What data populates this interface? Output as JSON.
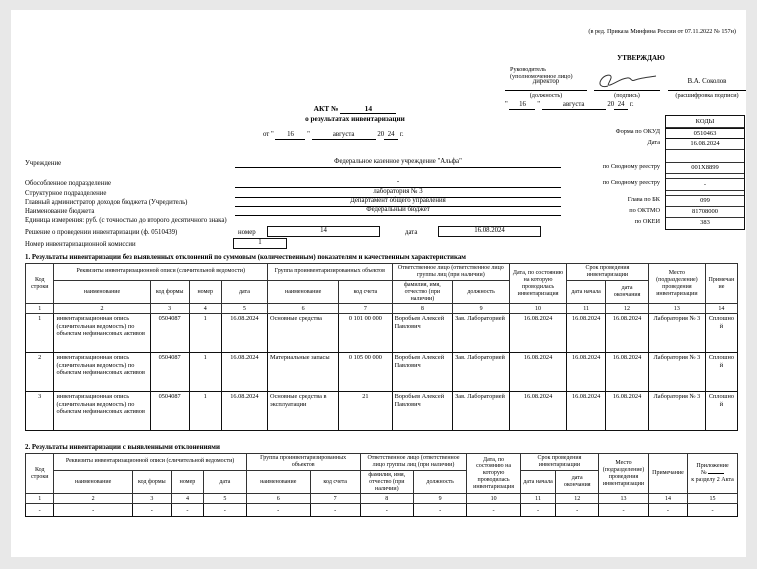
{
  "qm": "\"",
  "revision_note": "(в ред. Приказа Минфина России от 07.11.2022 № 157н)",
  "approval": {
    "word": "УТВЕРЖДАЮ",
    "head_line1": "Руководитель",
    "head_line2": "(уполномоченное лицо)",
    "position": "директор",
    "position_caption": "(должность)",
    "signature_caption": "(подпись)",
    "name": "В.А. Соколов",
    "name_caption": "(расшифровка подписи)",
    "date_day": "16",
    "date_month": "августа",
    "year_prefix": "20",
    "year": "24",
    "year_suffix": "г."
  },
  "title": {
    "act_label": "АКТ №",
    "act_number": "14",
    "subtitle": "о результатах инвентаризации",
    "from_word": "от",
    "date_day": "16",
    "date_month": "августа",
    "year_prefix": "20",
    "year": "24",
    "year_suffix": "г."
  },
  "codes": {
    "header": "КОДЫ",
    "okud_label": "Форма по ОКУД",
    "okud": "0510463",
    "date_label": "Дата",
    "date": "16.08.2024",
    "registry1_label": "по Сводному реестру",
    "registry1": "001Х8899",
    "registry2_label": "по Сводному реестру",
    "registry2": "-",
    "bk_label": "Глава по БК",
    "bk": "099",
    "oktmo_label": "по ОКТМО",
    "oktmo": "81708000",
    "okei_label": "по ОКЕИ",
    "okei": "383"
  },
  "fields": {
    "institution_label": "Учреждение",
    "institution": "Федеральное казенное учреждение \"Альфа\"",
    "separate_unit_label": "Обособленное подразделение",
    "separate_unit": "-",
    "structural_unit_label": "Структурное подразделение",
    "structural_unit": "лаборатория № 3",
    "admin_label": "Главный администратор доходов бюджета (Учредитель)",
    "admin": "Департамент общего управления",
    "budget_label": "Наименование бюджета",
    "budget": "Федеральный бюджет",
    "unit_label": "Единица измерения: руб. (с точностью до второго десятичного знака)",
    "decision_label": "Решение о проведении инвентаризации (ф. 0510439)",
    "decision_number_label": "номер",
    "decision_number": "14",
    "decision_date_label": "дата",
    "decision_date": "16.08.2024",
    "commission_label": "Номер инвентаризационной комиссии",
    "commission_number": "1"
  },
  "section1": {
    "title": "1. Результаты инвентаризации без выявленных отклонений по суммовым (количественным) показателям и качественным характеристикам",
    "header": {
      "code_line": "Код строки",
      "requisites": "Реквизиты инвентаризационной описи (сличительной ведомости)",
      "group": "Группа проинвентаризированных объектов",
      "responsible": "Ответственное лицо (ответственное лицо группы лиц (при наличии)",
      "date_as_of": "Дата, по состоянию на которую проводилась инвентаризация",
      "period": "Срок проведения инвентаризации",
      "place": "Место (подразделение) проведения инвентаризации",
      "note": "Примечание",
      "sub_name": "наименование",
      "sub_form_code": "код формы",
      "sub_number": "номер",
      "sub_date": "дата",
      "sub_name2": "наименование",
      "sub_account": "код счета",
      "sub_fio": "фамилия, имя, отчество (при наличии)",
      "sub_position": "должность",
      "sub_start": "дата начала",
      "sub_end": "дата окончания",
      "numbers": [
        "1",
        "2",
        "3",
        "4",
        "5",
        "6",
        "7",
        "8",
        "9",
        "10",
        "11",
        "12",
        "13",
        "14"
      ]
    },
    "rows": [
      {
        "cells": [
          "1",
          "инвентаризационная опись (сличительная ведомость) по объектам нефинансовых активов",
          "0504087",
          "1",
          "16.08.2024",
          "Основные средства",
          "0 101 00 000",
          "Воробьев Алексей Павлович",
          "Зав. Лабораторией",
          "16.08.2024",
          "16.08.2024",
          "16.08.2024",
          "Лаборатория № 3",
          "Сплошной"
        ]
      },
      {
        "cells": [
          "2",
          "инвентаризационная опись (сличительная ведомость) по объектам нефинансовых активов",
          "0504087",
          "1",
          "16.08.2024",
          "Материальные запасы",
          "0 105 00 000",
          "Воробьев Алексей Павлович",
          "Зав. Лабораторией",
          "16.08.2024",
          "16.08.2024",
          "16.08.2024",
          "Лаборатория № 3",
          "Сплошной"
        ]
      },
      {
        "cells": [
          "3",
          "инвентаризационная опись (сличительная ведомость) по объектам нефинансовых активов",
          "0504087",
          "1",
          "16.08.2024",
          "Основные средства в эксплуатации",
          "21",
          "Воробьев Алексей Павлович",
          "Зав. Лабораторией",
          "16.08.2024",
          "16.08.2024",
          "16.08.2024",
          "Лаборатория № 3",
          "Сплошной"
        ]
      }
    ]
  },
  "section2": {
    "title": "2. Результаты инвентаризации с выявленными отклонениями",
    "header": {
      "code_line": "Код строки",
      "requisites": "Реквизиты инвентаризационной описи (сличительной ведомости)",
      "group": "Группа проинвентаризированных объектов",
      "responsible": "Ответственное лицо (ответственное лицо группы лиц (при наличии)",
      "date_as_of": "Дата, по состоянию на которую проводилась инвентаризация",
      "period": "Срок проведения инвентаризации",
      "place": "Место (подразделение) проведения инвентаризации",
      "note": "Примечание",
      "appendix_line1": "Приложение",
      "appendix_no": "№",
      "appendix_line3": "к разделу 2 Акта",
      "sub_name": "наименование",
      "sub_form_code": "код формы",
      "sub_number": "номер",
      "sub_date": "дата",
      "sub_name2": "наименование",
      "sub_account": "код счета",
      "sub_fio": "фамилия, имя, отчество (при наличии)",
      "sub_position": "должность",
      "sub_start": "дата начала",
      "sub_end": "дата окончания",
      "numbers": [
        "1",
        "2",
        "3",
        "4",
        "5",
        "6",
        "7",
        "8",
        "9",
        "10",
        "11",
        "12",
        "13",
        "14",
        "15"
      ]
    },
    "rows": [
      {
        "cells": [
          "-",
          "-",
          "-",
          "-",
          "-",
          "-",
          "-",
          "-",
          "-",
          "-",
          "-",
          "-",
          "-",
          "-",
          "-"
        ]
      }
    ]
  }
}
